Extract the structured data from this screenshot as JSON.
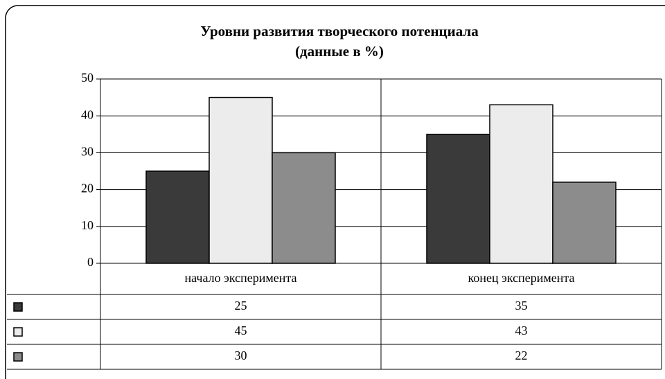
{
  "chart_data": {
    "type": "bar",
    "title": "Уровни развития творческого потенциала",
    "subtitle": "(данные в %)",
    "categories": [
      "начало эксперимента",
      "конец эксперимента"
    ],
    "series": [
      {
        "color": "#3a3a3a",
        "values": [
          25,
          35
        ]
      },
      {
        "color": "#ececec",
        "values": [
          45,
          43
        ]
      },
      {
        "color": "#8c8c8c",
        "values": [
          30,
          22
        ]
      }
    ],
    "ylim": [
      0,
      50
    ],
    "yticks": [
      0,
      10,
      20,
      30,
      40,
      50
    ],
    "grid": true,
    "data_table": true
  }
}
